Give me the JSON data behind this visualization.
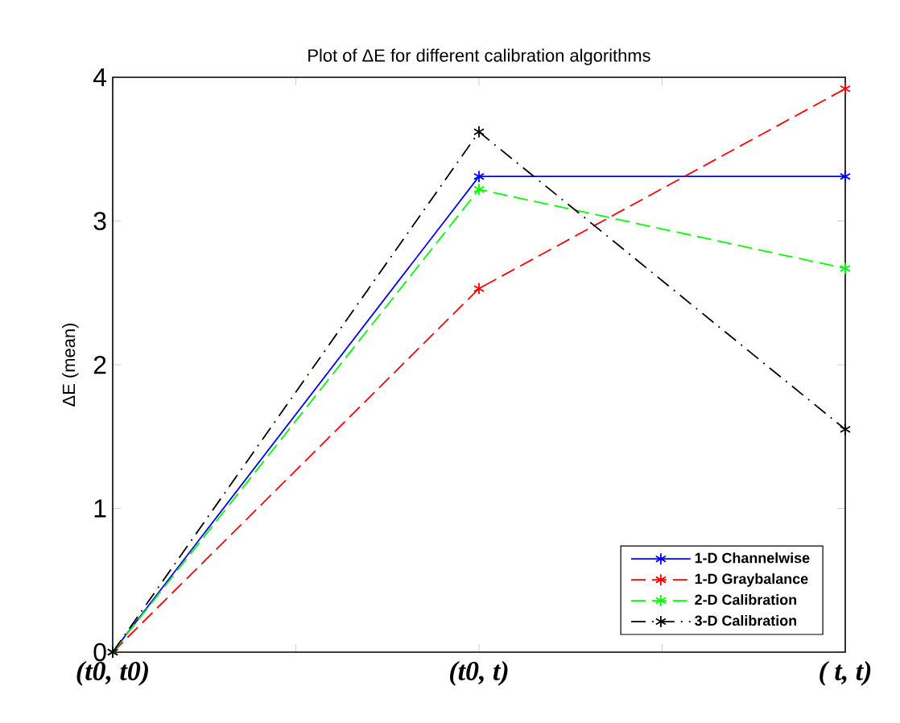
{
  "chart_data": {
    "type": "line",
    "title": "Plot of ΔE for different calibration algorithms",
    "ylabel": "ΔE (mean)",
    "categories": [
      "(t0, t0)",
      "(t0, t)",
      "( t, t)"
    ],
    "ylim": [
      0,
      4
    ],
    "yticks": [
      0,
      1,
      2,
      3,
      4
    ],
    "marker": "cross",
    "legend": "bottom right",
    "series": [
      {
        "name": "1-D Channelwise",
        "color": "#0000ff",
        "line_style": "solid",
        "values": [
          0,
          3.31,
          3.31
        ]
      },
      {
        "name": "1-D Graybalance",
        "color": "#ff0000",
        "line_style": "dashed",
        "values": [
          0,
          2.53,
          3.92
        ]
      },
      {
        "name": "2-D Calibration",
        "color": "#00ff00",
        "line_style": "dashed",
        "values": [
          0,
          3.22,
          2.67
        ]
      },
      {
        "name": "3-D Calibration",
        "color": "#000000",
        "line_style": "dashdot",
        "values": [
          0,
          3.62,
          1.55
        ]
      }
    ]
  }
}
